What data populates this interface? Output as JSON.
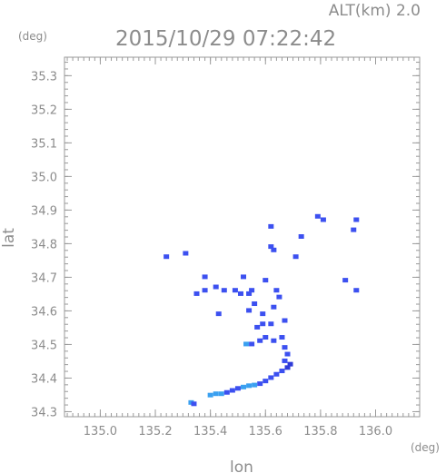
{
  "chart_data": {
    "type": "scatter",
    "title": "2015/10/29 07:22:42",
    "subtitle": "ALT(km) 2.0",
    "xlabel": "lon",
    "ylabel": "lat",
    "x_unit": "(deg)",
    "y_unit": "(deg)",
    "xlim": [
      134.87,
      136.16
    ],
    "ylim": [
      34.285,
      35.355
    ],
    "x_ticks": [
      "135.0",
      "135.2",
      "135.4",
      "135.6",
      "135.8",
      "136.0"
    ],
    "y_ticks": [
      "34.3",
      "34.4",
      "34.5",
      "34.6",
      "34.7",
      "34.8",
      "34.9",
      "35.0",
      "35.1",
      "35.2",
      "35.3"
    ],
    "grid": false,
    "colors": {
      "axis": "#9a9a9a",
      "text": "#8c8c8c",
      "main": "#3c50f0",
      "dark": "#2e3ad8",
      "light": "#3aa0f0"
    },
    "points": [
      {
        "x": 135.33,
        "y": 34.326,
        "c": "light"
      },
      {
        "x": 135.34,
        "y": 34.322,
        "c": "main"
      },
      {
        "x": 135.4,
        "y": 34.348,
        "c": "light"
      },
      {
        "x": 135.42,
        "y": 34.352,
        "c": "light"
      },
      {
        "x": 135.44,
        "y": 34.352,
        "c": "light"
      },
      {
        "x": 135.46,
        "y": 34.356,
        "c": "main"
      },
      {
        "x": 135.48,
        "y": 34.362,
        "c": "main"
      },
      {
        "x": 135.5,
        "y": 34.368,
        "c": "main"
      },
      {
        "x": 135.52,
        "y": 34.372,
        "c": "light"
      },
      {
        "x": 135.54,
        "y": 34.376,
        "c": "light"
      },
      {
        "x": 135.56,
        "y": 34.378,
        "c": "light"
      },
      {
        "x": 135.58,
        "y": 34.382,
        "c": "main"
      },
      {
        "x": 135.6,
        "y": 34.39,
        "c": "main"
      },
      {
        "x": 135.62,
        "y": 34.4,
        "c": "main"
      },
      {
        "x": 135.64,
        "y": 34.41,
        "c": "main"
      },
      {
        "x": 135.66,
        "y": 34.42,
        "c": "main"
      },
      {
        "x": 135.68,
        "y": 34.43,
        "c": "dark"
      },
      {
        "x": 135.69,
        "y": 34.44,
        "c": "dark"
      },
      {
        "x": 135.67,
        "y": 34.45,
        "c": "main"
      },
      {
        "x": 135.68,
        "y": 34.47,
        "c": "main"
      },
      {
        "x": 135.67,
        "y": 34.49,
        "c": "main"
      },
      {
        "x": 135.53,
        "y": 34.5,
        "c": "light"
      },
      {
        "x": 135.55,
        "y": 34.5,
        "c": "main"
      },
      {
        "x": 135.58,
        "y": 34.51,
        "c": "main"
      },
      {
        "x": 135.6,
        "y": 34.52,
        "c": "main"
      },
      {
        "x": 135.63,
        "y": 34.51,
        "c": "main"
      },
      {
        "x": 135.66,
        "y": 34.52,
        "c": "main"
      },
      {
        "x": 135.57,
        "y": 34.55,
        "c": "main"
      },
      {
        "x": 135.59,
        "y": 34.56,
        "c": "main"
      },
      {
        "x": 135.62,
        "y": 34.56,
        "c": "main"
      },
      {
        "x": 135.54,
        "y": 34.6,
        "c": "main"
      },
      {
        "x": 135.56,
        "y": 34.62,
        "c": "main"
      },
      {
        "x": 135.59,
        "y": 34.59,
        "c": "main"
      },
      {
        "x": 135.63,
        "y": 34.61,
        "c": "main"
      },
      {
        "x": 135.65,
        "y": 34.64,
        "c": "main"
      },
      {
        "x": 135.54,
        "y": 34.65,
        "c": "main"
      },
      {
        "x": 135.55,
        "y": 34.66,
        "c": "main"
      },
      {
        "x": 135.64,
        "y": 34.66,
        "c": "main"
      },
      {
        "x": 135.67,
        "y": 34.57,
        "c": "main"
      },
      {
        "x": 135.43,
        "y": 34.59,
        "c": "main"
      },
      {
        "x": 135.42,
        "y": 34.67,
        "c": "main"
      },
      {
        "x": 135.45,
        "y": 34.66,
        "c": "main"
      },
      {
        "x": 135.49,
        "y": 34.66,
        "c": "main"
      },
      {
        "x": 135.38,
        "y": 34.7,
        "c": "main"
      },
      {
        "x": 135.38,
        "y": 34.66,
        "c": "main"
      },
      {
        "x": 135.35,
        "y": 34.65,
        "c": "main"
      },
      {
        "x": 135.52,
        "y": 34.7,
        "c": "main"
      },
      {
        "x": 135.51,
        "y": 34.65,
        "c": "main"
      },
      {
        "x": 135.31,
        "y": 34.77,
        "c": "main"
      },
      {
        "x": 135.24,
        "y": 34.76,
        "c": "main"
      },
      {
        "x": 135.62,
        "y": 34.79,
        "c": "main"
      },
      {
        "x": 135.63,
        "y": 34.78,
        "c": "main"
      },
      {
        "x": 135.73,
        "y": 34.82,
        "c": "main"
      },
      {
        "x": 135.79,
        "y": 34.88,
        "c": "main"
      },
      {
        "x": 135.81,
        "y": 34.87,
        "c": "main"
      },
      {
        "x": 135.93,
        "y": 34.87,
        "c": "main"
      },
      {
        "x": 135.92,
        "y": 34.84,
        "c": "main"
      },
      {
        "x": 135.93,
        "y": 34.66,
        "c": "main"
      },
      {
        "x": 135.89,
        "y": 34.69,
        "c": "main"
      },
      {
        "x": 135.62,
        "y": 34.85,
        "c": "main"
      },
      {
        "x": 135.71,
        "y": 34.76,
        "c": "main"
      },
      {
        "x": 135.6,
        "y": 34.69,
        "c": "main"
      }
    ]
  }
}
